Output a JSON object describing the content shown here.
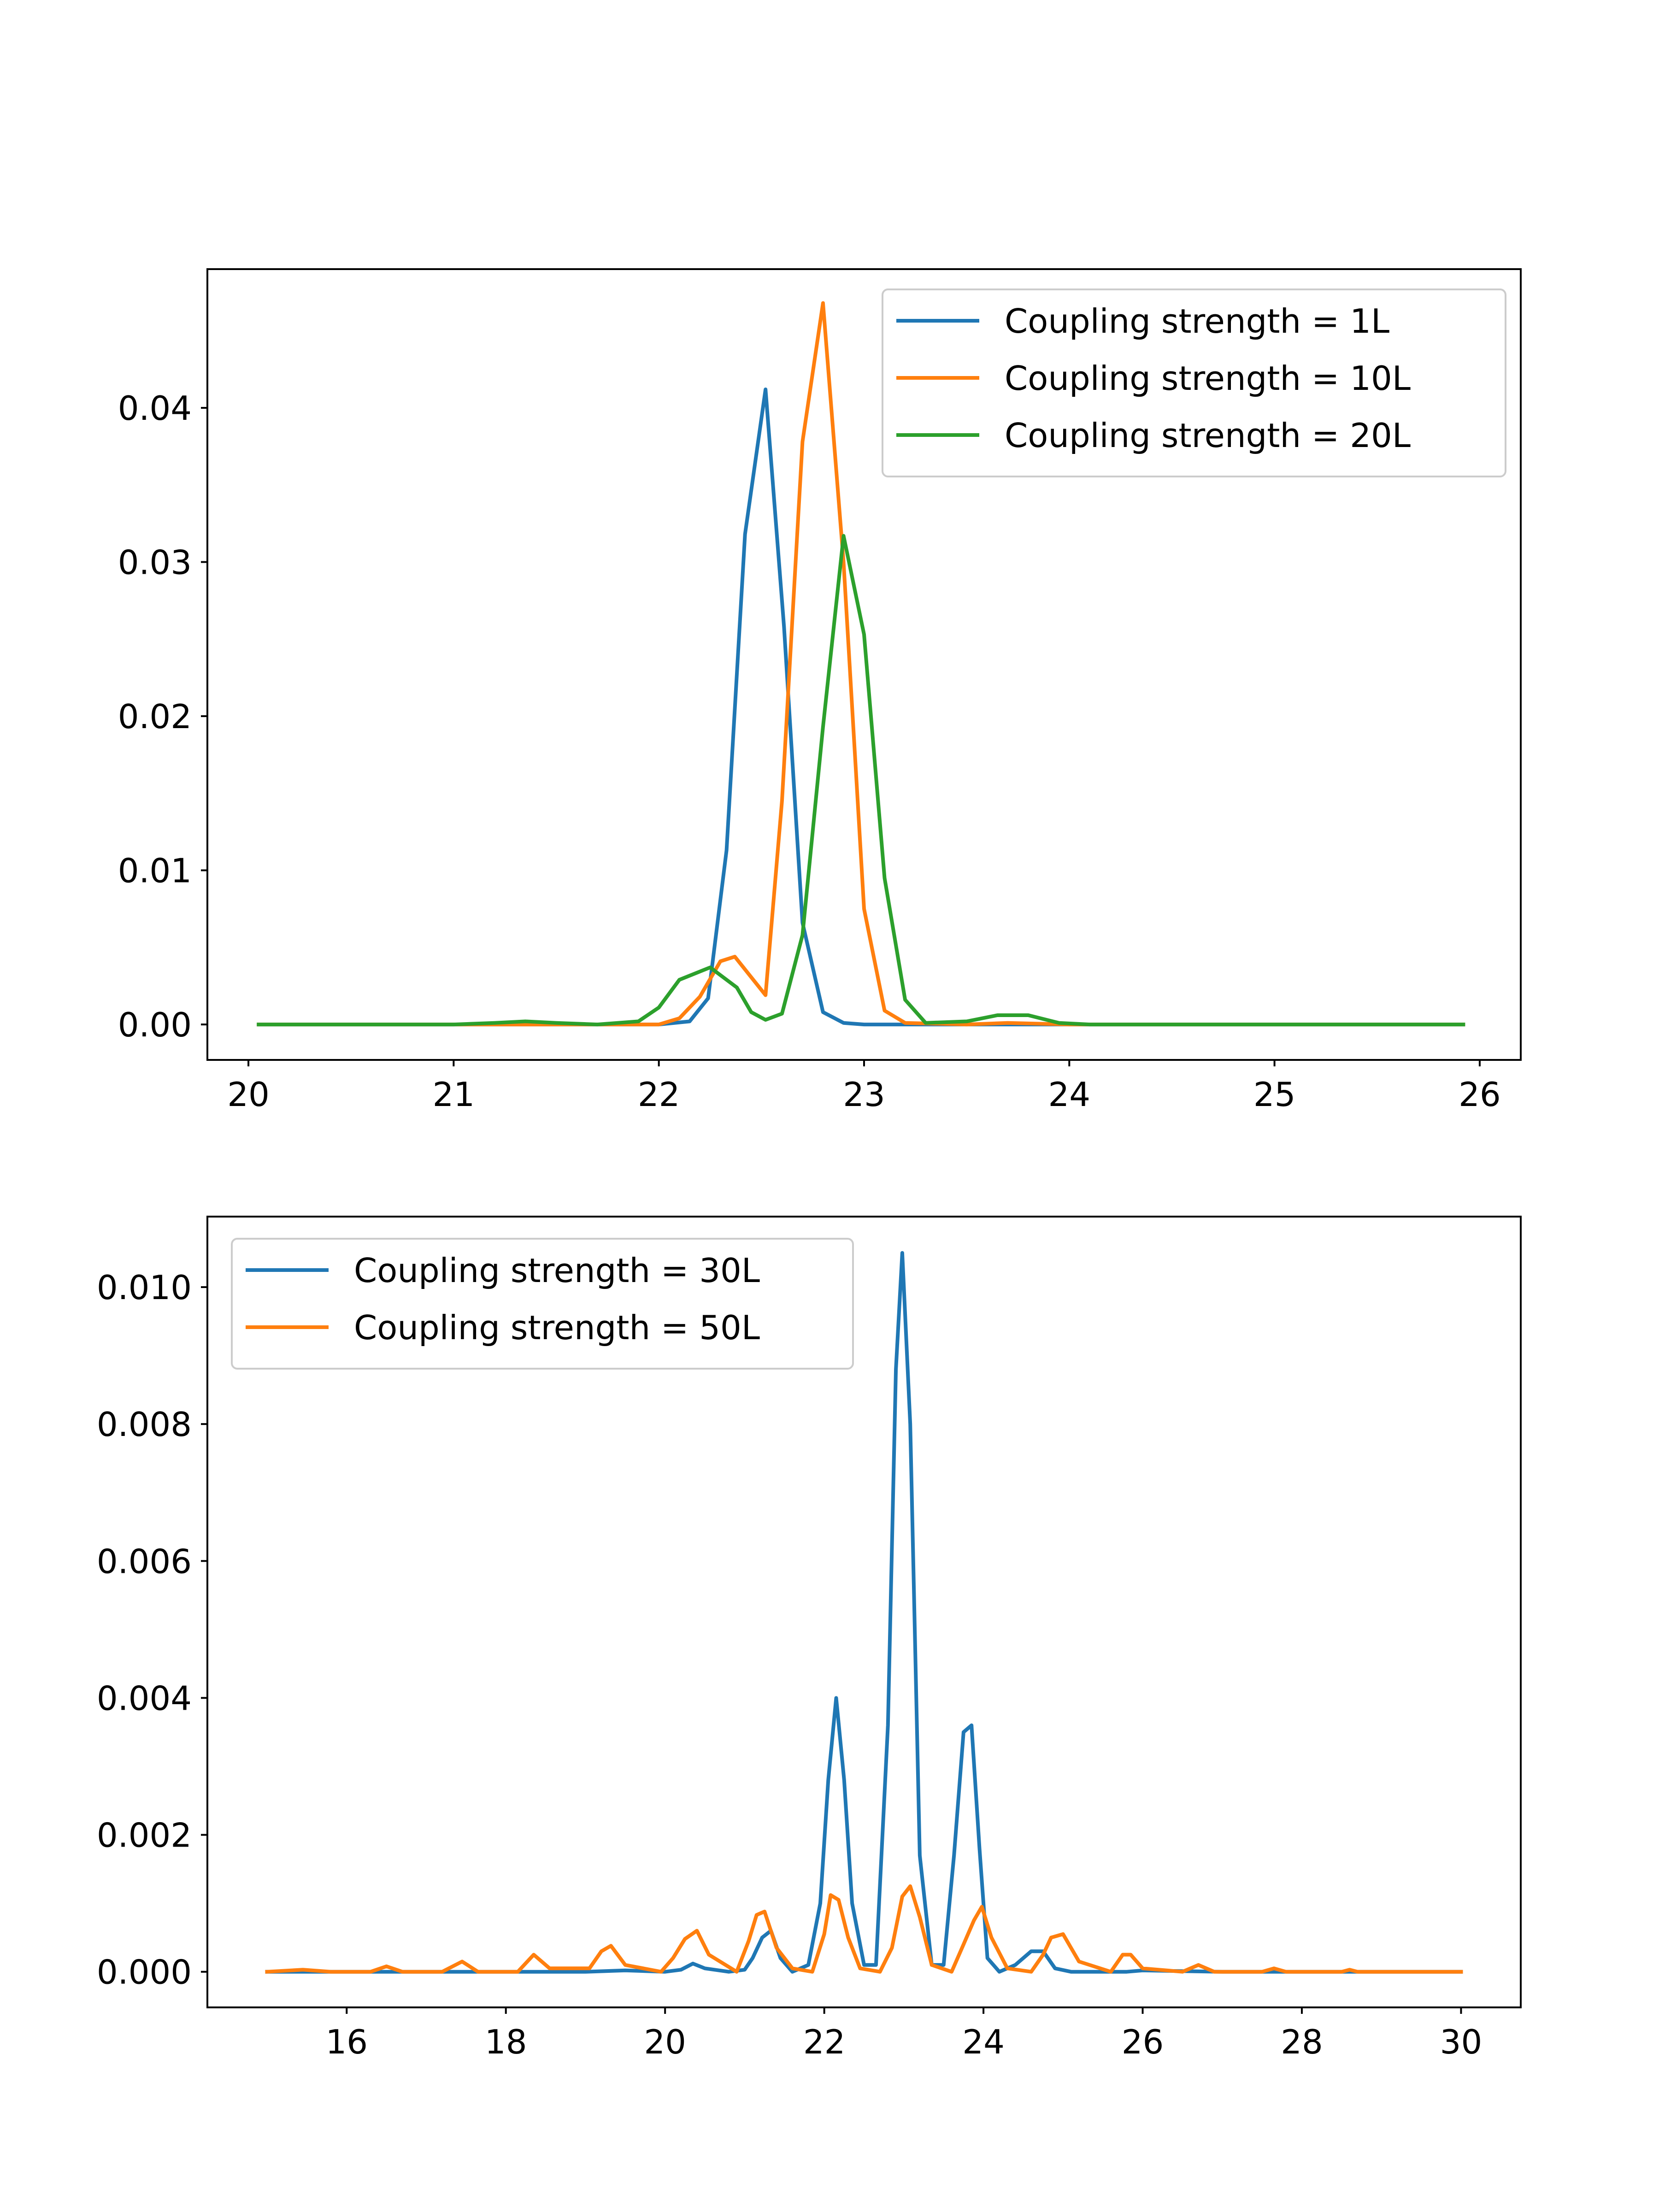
{
  "chart_data": [
    {
      "type": "line",
      "title": "",
      "xlabel": "",
      "ylabel": "",
      "xlim": [
        19.8,
        26.2
      ],
      "ylim": [
        -0.0023,
        0.049
      ],
      "xticks": [
        20,
        21,
        22,
        23,
        24,
        25,
        26
      ],
      "xtick_labels": [
        "20",
        "21",
        "22",
        "23",
        "24",
        "25",
        "26"
      ],
      "yticks": [
        0.0,
        0.01,
        0.02,
        0.03,
        0.04
      ],
      "ytick_labels": [
        "0.00",
        "0.01",
        "0.02",
        "0.03",
        "0.04"
      ],
      "grid": false,
      "legend_position": "upper right",
      "series": [
        {
          "name": "Coupling strength = 1L",
          "color": "#1f77b4",
          "x": [
            20.05,
            21.0,
            21.5,
            22.0,
            22.15,
            22.24,
            22.33,
            22.42,
            22.52,
            22.61,
            22.7,
            22.8,
            22.9,
            23.0,
            23.5,
            24.0,
            25.0,
            25.92
          ],
          "y": [
            0.0,
            0.0,
            0.0,
            0.0,
            0.0002,
            0.0017,
            0.0113,
            0.0318,
            0.0412,
            0.0258,
            0.0066,
            0.0008,
            0.0001,
            0.0,
            0.0,
            0.0,
            0.0,
            0.0
          ]
        },
        {
          "name": "Coupling strength = 10L",
          "color": "#ff7f0e",
          "x": [
            20.05,
            21.0,
            21.5,
            22.0,
            22.1,
            22.2,
            22.3,
            22.37,
            22.52,
            22.6,
            22.7,
            22.8,
            22.9,
            23.0,
            23.1,
            23.2,
            23.5,
            23.7,
            24.0,
            25.0,
            25.92
          ],
          "y": [
            0.0,
            0.0,
            0.0,
            0.0,
            0.0004,
            0.0018,
            0.0041,
            0.0044,
            0.0019,
            0.0145,
            0.0378,
            0.0468,
            0.03,
            0.0075,
            0.0009,
            0.0001,
            0.0,
            0.0001,
            0.0,
            0.0,
            0.0
          ]
        },
        {
          "name": "Coupling strength = 20L",
          "color": "#2ca02c",
          "x": [
            20.05,
            21.0,
            21.2,
            21.35,
            21.5,
            21.7,
            21.9,
            22.0,
            22.1,
            22.25,
            22.38,
            22.45,
            22.52,
            22.6,
            22.7,
            22.8,
            22.9,
            23.0,
            23.1,
            23.2,
            23.3,
            23.5,
            23.65,
            23.8,
            23.95,
            24.1,
            25.0,
            25.92
          ],
          "y": [
            0.0,
            0.0,
            0.0001,
            0.0002,
            0.0001,
            0.0,
            0.0002,
            0.0011,
            0.0029,
            0.0037,
            0.0024,
            0.0008,
            0.0003,
            0.0007,
            0.0058,
            0.0193,
            0.0317,
            0.0253,
            0.0095,
            0.0016,
            0.0001,
            0.0002,
            0.0006,
            0.0006,
            0.0001,
            0.0,
            0.0,
            0.0
          ]
        }
      ]
    },
    {
      "type": "line",
      "title": "",
      "xlabel": "",
      "ylabel": "",
      "xlim": [
        14.25,
        30.75
      ],
      "ylim": [
        -0.00052,
        0.01103
      ],
      "xticks": [
        16,
        18,
        20,
        22,
        24,
        26,
        28,
        30
      ],
      "xtick_labels": [
        "16",
        "18",
        "20",
        "22",
        "24",
        "26",
        "28",
        "30"
      ],
      "yticks": [
        0.0,
        0.002,
        0.004,
        0.006,
        0.008,
        0.01
      ],
      "ytick_labels": [
        "0.000",
        "0.002",
        "0.004",
        "0.006",
        "0.008",
        "0.010"
      ],
      "grid": false,
      "legend_position": "upper left",
      "series": [
        {
          "name": "Coupling strength = 30L",
          "color": "#1f77b4",
          "x": [
            15.0,
            19.0,
            19.5,
            20.0,
            20.2,
            20.35,
            20.5,
            20.8,
            21.0,
            21.1,
            21.22,
            21.33,
            21.45,
            21.6,
            21.8,
            21.95,
            22.05,
            22.15,
            22.25,
            22.35,
            22.5,
            22.65,
            22.8,
            22.9,
            22.98,
            23.08,
            23.2,
            23.35,
            23.5,
            23.63,
            23.75,
            23.85,
            23.95,
            24.05,
            24.2,
            24.4,
            24.6,
            24.75,
            24.9,
            25.1,
            25.4,
            25.8,
            26.0,
            27.0,
            28.0,
            30.0
          ],
          "y": [
            0.0,
            0.0,
            2e-05,
            0.0,
            3e-05,
            0.00012,
            5e-05,
            0.0,
            3e-05,
            0.0002,
            0.0005,
            0.0006,
            0.0002,
            0.0,
            0.0001,
            0.001,
            0.0028,
            0.004,
            0.0028,
            0.001,
            0.0001,
            0.0001,
            0.0036,
            0.0088,
            0.0105,
            0.008,
            0.0017,
            0.0001,
            0.0001,
            0.0017,
            0.0035,
            0.0036,
            0.0018,
            0.0002,
            0.0,
            0.0001,
            0.0003,
            0.0003,
            5e-05,
            0.0,
            0.0,
            0.0,
            2e-05,
            0.0,
            0.0,
            0.0
          ]
        },
        {
          "name": "Coupling strength = 50L",
          "color": "#ff7f0e",
          "x": [
            15.0,
            15.45,
            15.8,
            16.3,
            16.5,
            16.7,
            17.2,
            17.45,
            17.65,
            18.15,
            18.35,
            18.55,
            19.05,
            19.2,
            19.32,
            19.5,
            19.95,
            20.1,
            20.25,
            20.4,
            20.55,
            20.9,
            21.05,
            21.15,
            21.25,
            21.4,
            21.6,
            21.85,
            22.0,
            22.08,
            22.18,
            22.3,
            22.45,
            22.7,
            22.85,
            22.98,
            23.08,
            23.2,
            23.35,
            23.6,
            23.75,
            23.88,
            23.98,
            24.1,
            24.3,
            24.6,
            24.75,
            24.85,
            25.0,
            25.2,
            25.6,
            25.75,
            25.85,
            26.0,
            26.5,
            26.7,
            26.9,
            27.5,
            27.65,
            27.8,
            28.5,
            28.6,
            28.7,
            30.0
          ],
          "y": [
            0.0,
            3e-05,
            0.0,
            0.0,
            8e-05,
            0.0,
            0.0,
            0.00015,
            0.0,
            0.0,
            0.00025,
            5e-05,
            5e-05,
            0.0003,
            0.00038,
            0.0001,
            0.0,
            0.0002,
            0.00048,
            0.0006,
            0.00025,
            0.0,
            0.00045,
            0.00083,
            0.00088,
            0.00035,
            5e-05,
            0.0,
            0.00055,
            0.00112,
            0.00105,
            0.0005,
            5e-05,
            0.0,
            0.00035,
            0.0011,
            0.00125,
            0.0008,
            0.0001,
            0.0,
            0.0004,
            0.00075,
            0.00095,
            0.0005,
            5e-05,
            0.0,
            0.00025,
            0.0005,
            0.00055,
            0.00015,
            0.0,
            0.00025,
            0.00025,
            5e-05,
            0.0,
            0.0001,
            0.0,
            0.0,
            5e-05,
            0.0,
            0.0,
            3e-05,
            0.0,
            0.0
          ]
        }
      ]
    }
  ]
}
